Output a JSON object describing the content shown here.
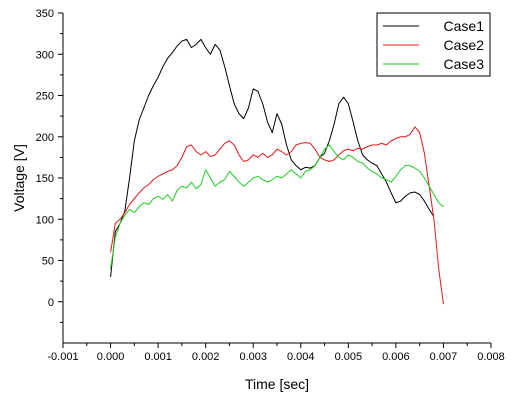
{
  "chart_data": {
    "type": "line",
    "title": "",
    "xlabel": "Time [sec]",
    "ylabel": "Voltage [V]",
    "xlim": [
      -0.001,
      0.008
    ],
    "ylim": [
      -50,
      350
    ],
    "x_ticks": [
      -0.001,
      0.0,
      0.001,
      0.002,
      0.003,
      0.004,
      0.005,
      0.006,
      0.007,
      0.008
    ],
    "x_tick_labels": [
      "-0.001",
      "0.000",
      "0.001",
      "0.002",
      "0.003",
      "0.004",
      "0.005",
      "0.006",
      "0.007",
      "0.008"
    ],
    "y_ticks": [
      0,
      50,
      100,
      150,
      200,
      250,
      300,
      350
    ],
    "y_tick_labels": [
      "0",
      "50",
      "100",
      "150",
      "200",
      "250",
      "300",
      "350"
    ],
    "grid": false,
    "legend_position": "top-right",
    "series": [
      {
        "name": "Case1",
        "color": "#000000",
        "points": [
          [
            0.0,
            30
          ],
          [
            0.0001,
            85
          ],
          [
            0.0002,
            95
          ],
          [
            0.0003,
            110
          ],
          [
            0.0004,
            150
          ],
          [
            0.0005,
            195
          ],
          [
            0.0006,
            220
          ],
          [
            0.0007,
            235
          ],
          [
            0.0008,
            250
          ],
          [
            0.0009,
            262
          ],
          [
            0.001,
            272
          ],
          [
            0.0011,
            285
          ],
          [
            0.0012,
            295
          ],
          [
            0.0013,
            302
          ],
          [
            0.0014,
            310
          ],
          [
            0.0015,
            316
          ],
          [
            0.0016,
            318
          ],
          [
            0.0017,
            308
          ],
          [
            0.0018,
            312
          ],
          [
            0.0019,
            318
          ],
          [
            0.002,
            308
          ],
          [
            0.0021,
            300
          ],
          [
            0.0022,
            312
          ],
          [
            0.0023,
            305
          ],
          [
            0.0024,
            285
          ],
          [
            0.0025,
            262
          ],
          [
            0.0026,
            240
          ],
          [
            0.0027,
            228
          ],
          [
            0.0028,
            222
          ],
          [
            0.0029,
            235
          ],
          [
            0.003,
            258
          ],
          [
            0.0031,
            255
          ],
          [
            0.0032,
            240
          ],
          [
            0.0033,
            218
          ],
          [
            0.0034,
            205
          ],
          [
            0.0035,
            228
          ],
          [
            0.0036,
            215
          ],
          [
            0.0037,
            190
          ],
          [
            0.0038,
            172
          ],
          [
            0.0039,
            165
          ],
          [
            0.004,
            160
          ],
          [
            0.0041,
            163
          ],
          [
            0.0042,
            162
          ],
          [
            0.0043,
            165
          ],
          [
            0.0044,
            175
          ],
          [
            0.0045,
            180
          ],
          [
            0.0046,
            195
          ],
          [
            0.0047,
            215
          ],
          [
            0.0048,
            240
          ],
          [
            0.0049,
            248
          ],
          [
            0.005,
            240
          ],
          [
            0.0051,
            218
          ],
          [
            0.0052,
            195
          ],
          [
            0.0053,
            178
          ],
          [
            0.0054,
            172
          ],
          [
            0.0055,
            168
          ],
          [
            0.0056,
            165
          ],
          [
            0.0057,
            155
          ],
          [
            0.0058,
            145
          ],
          [
            0.0059,
            132
          ],
          [
            0.006,
            120
          ],
          [
            0.0061,
            122
          ],
          [
            0.0062,
            128
          ],
          [
            0.0063,
            132
          ],
          [
            0.0064,
            133
          ],
          [
            0.0065,
            130
          ],
          [
            0.0066,
            122
          ],
          [
            0.0067,
            112
          ],
          [
            0.0068,
            103
          ]
        ]
      },
      {
        "name": "Case2",
        "color": "#e31a1c",
        "points": [
          [
            0.0,
            60
          ],
          [
            0.0001,
            95
          ],
          [
            0.0002,
            100
          ],
          [
            0.0003,
            108
          ],
          [
            0.0004,
            118
          ],
          [
            0.0005,
            125
          ],
          [
            0.0006,
            132
          ],
          [
            0.0007,
            138
          ],
          [
            0.0008,
            142
          ],
          [
            0.0009,
            148
          ],
          [
            0.001,
            152
          ],
          [
            0.0011,
            155
          ],
          [
            0.0012,
            158
          ],
          [
            0.0013,
            160
          ],
          [
            0.0014,
            165
          ],
          [
            0.0015,
            175
          ],
          [
            0.0016,
            188
          ],
          [
            0.0017,
            190
          ],
          [
            0.0018,
            182
          ],
          [
            0.0019,
            178
          ],
          [
            0.002,
            182
          ],
          [
            0.0021,
            176
          ],
          [
            0.0022,
            178
          ],
          [
            0.0023,
            185
          ],
          [
            0.0024,
            192
          ],
          [
            0.0025,
            195
          ],
          [
            0.0026,
            190
          ],
          [
            0.0027,
            178
          ],
          [
            0.0028,
            170
          ],
          [
            0.0029,
            172
          ],
          [
            0.003,
            178
          ],
          [
            0.0031,
            175
          ],
          [
            0.0032,
            180
          ],
          [
            0.0033,
            175
          ],
          [
            0.0034,
            178
          ],
          [
            0.0035,
            185
          ],
          [
            0.0036,
            182
          ],
          [
            0.0037,
            178
          ],
          [
            0.0038,
            182
          ],
          [
            0.0039,
            190
          ],
          [
            0.004,
            192
          ],
          [
            0.0041,
            193
          ],
          [
            0.0042,
            192
          ],
          [
            0.0043,
            185
          ],
          [
            0.0044,
            175
          ],
          [
            0.0045,
            172
          ],
          [
            0.0046,
            170
          ],
          [
            0.0047,
            172
          ],
          [
            0.0048,
            178
          ],
          [
            0.0049,
            183
          ],
          [
            0.005,
            185
          ],
          [
            0.0051,
            183
          ],
          [
            0.0052,
            186
          ],
          [
            0.0053,
            185
          ],
          [
            0.0054,
            188
          ],
          [
            0.0055,
            190
          ],
          [
            0.0056,
            190
          ],
          [
            0.0057,
            192
          ],
          [
            0.0058,
            190
          ],
          [
            0.0059,
            195
          ],
          [
            0.006,
            198
          ],
          [
            0.0061,
            200
          ],
          [
            0.0062,
            200
          ],
          [
            0.0063,
            203
          ],
          [
            0.0064,
            212
          ],
          [
            0.0065,
            205
          ],
          [
            0.0066,
            180
          ],
          [
            0.0067,
            140
          ],
          [
            0.0068,
            100
          ],
          [
            0.0069,
            40
          ],
          [
            0.007,
            -3
          ]
        ]
      },
      {
        "name": "Case3",
        "color": "#22cc22",
        "points": [
          [
            0.0,
            40
          ],
          [
            0.0001,
            78
          ],
          [
            0.0002,
            95
          ],
          [
            0.0003,
            105
          ],
          [
            0.0004,
            112
          ],
          [
            0.0005,
            108
          ],
          [
            0.0006,
            115
          ],
          [
            0.0007,
            120
          ],
          [
            0.0008,
            118
          ],
          [
            0.0009,
            125
          ],
          [
            0.001,
            128
          ],
          [
            0.0011,
            124
          ],
          [
            0.0012,
            130
          ],
          [
            0.0013,
            122
          ],
          [
            0.0014,
            135
          ],
          [
            0.0015,
            140
          ],
          [
            0.0016,
            138
          ],
          [
            0.0017,
            145
          ],
          [
            0.0018,
            137
          ],
          [
            0.0019,
            142
          ],
          [
            0.002,
            160
          ],
          [
            0.0021,
            150
          ],
          [
            0.0022,
            140
          ],
          [
            0.0023,
            145
          ],
          [
            0.0024,
            148
          ],
          [
            0.0025,
            158
          ],
          [
            0.0026,
            152
          ],
          [
            0.0027,
            145
          ],
          [
            0.0028,
            140
          ],
          [
            0.0029,
            145
          ],
          [
            0.003,
            150
          ],
          [
            0.0031,
            152
          ],
          [
            0.0032,
            148
          ],
          [
            0.0033,
            145
          ],
          [
            0.0034,
            148
          ],
          [
            0.0035,
            152
          ],
          [
            0.0036,
            150
          ],
          [
            0.0037,
            155
          ],
          [
            0.0038,
            160
          ],
          [
            0.0039,
            155
          ],
          [
            0.004,
            150
          ],
          [
            0.0041,
            158
          ],
          [
            0.0042,
            160
          ],
          [
            0.0043,
            165
          ],
          [
            0.0044,
            175
          ],
          [
            0.0045,
            185
          ],
          [
            0.0046,
            190
          ],
          [
            0.0047,
            182
          ],
          [
            0.0048,
            175
          ],
          [
            0.0049,
            172
          ],
          [
            0.005,
            178
          ],
          [
            0.0051,
            175
          ],
          [
            0.0052,
            170
          ],
          [
            0.0053,
            168
          ],
          [
            0.0054,
            162
          ],
          [
            0.0055,
            158
          ],
          [
            0.0056,
            155
          ],
          [
            0.0057,
            150
          ],
          [
            0.0058,
            148
          ],
          [
            0.0059,
            145
          ],
          [
            0.006,
            152
          ],
          [
            0.0061,
            160
          ],
          [
            0.0062,
            165
          ],
          [
            0.0063,
            165
          ],
          [
            0.0064,
            162
          ],
          [
            0.0065,
            158
          ],
          [
            0.0066,
            150
          ],
          [
            0.0067,
            140
          ],
          [
            0.0068,
            130
          ],
          [
            0.0069,
            120
          ],
          [
            0.007,
            115
          ]
        ]
      }
    ]
  }
}
